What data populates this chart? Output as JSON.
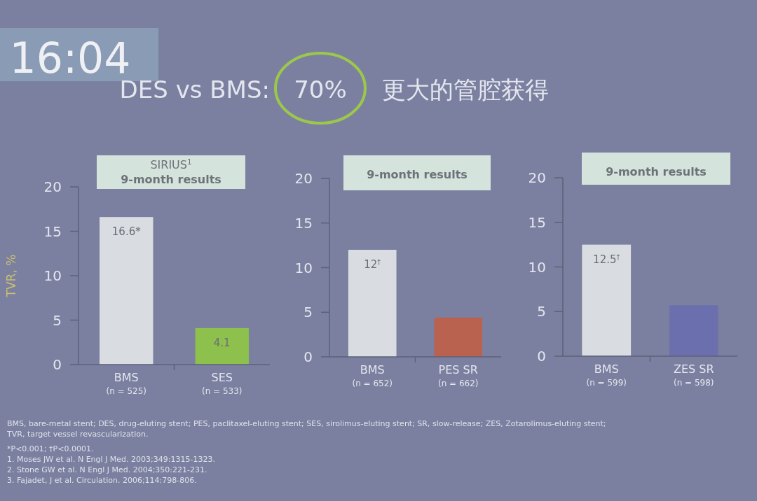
{
  "chart_data": [
    {
      "type": "bar",
      "title": "SIRIUS$^{1}$",
      "subtitle": "9-month results",
      "ylabel": "TVR, %",
      "categories": [
        "BMS\n(n = 525)",
        "SES\n(n = 533)"
      ],
      "values": [
        16.6,
        4.1
      ],
      "colors": [
        "#d9dde2",
        "#8dc04c"
      ],
      "value_labels": [
        "16.6*",
        "4.1"
      ],
      "ylim": [
        0,
        20
      ],
      "yticks": [
        0,
        5,
        10,
        15,
        20
      ],
      "annotations": [
        "16:04",
        "DES vs BMS:",
        "70%",
        "更大的管腔获得",
        "BMS, bare-metal stent; DES, drug-eluting stent; PES, paclitaxel-eluting stent; SES, sirolimus-eluting stent; SR, slow-release; ZES, Zotarolimus-eluting stent; TVR, target vessel revascularization.",
        "*P<0.001; †P<0.0001.",
        "1. Moses JW et al. N Engl J Med. 2003;349:1315-1323.",
        "2. Stone GW et al. N Engl J Med. 2004;350:221-231.",
        "3. Fajadet, J et al. Circulation. 2006;114:798-806."
      ]
    },
    {
      "type": "bar",
      "subtitle": "9-month results",
      "categories": [
        "BMS\n(n = 652)",
        "PES SR\n(n = 662)"
      ],
      "values": [
        12,
        4.4
      ],
      "colors": [
        "#d9dde2",
        "#b8624f"
      ],
      "value_labels": [
        "12$^{†}$",
        null
      ],
      "ylim": [
        0,
        20
      ],
      "yticks": [
        0,
        5,
        10,
        15,
        20
      ]
    },
    {
      "type": "bar",
      "subtitle": "9-month results",
      "categories": [
        "BMS\n(n = 599)",
        "ZES SR\n(n = 598)"
      ],
      "values": [
        12.5,
        5.7
      ],
      "colors": [
        "#d9dde2",
        "#6b6fae"
      ],
      "value_labels": [
        "12.5$^{†}$",
        null
      ],
      "ylim": [
        0,
        20
      ],
      "yticks": [
        0,
        5,
        10,
        15,
        20
      ]
    }
  ]
}
